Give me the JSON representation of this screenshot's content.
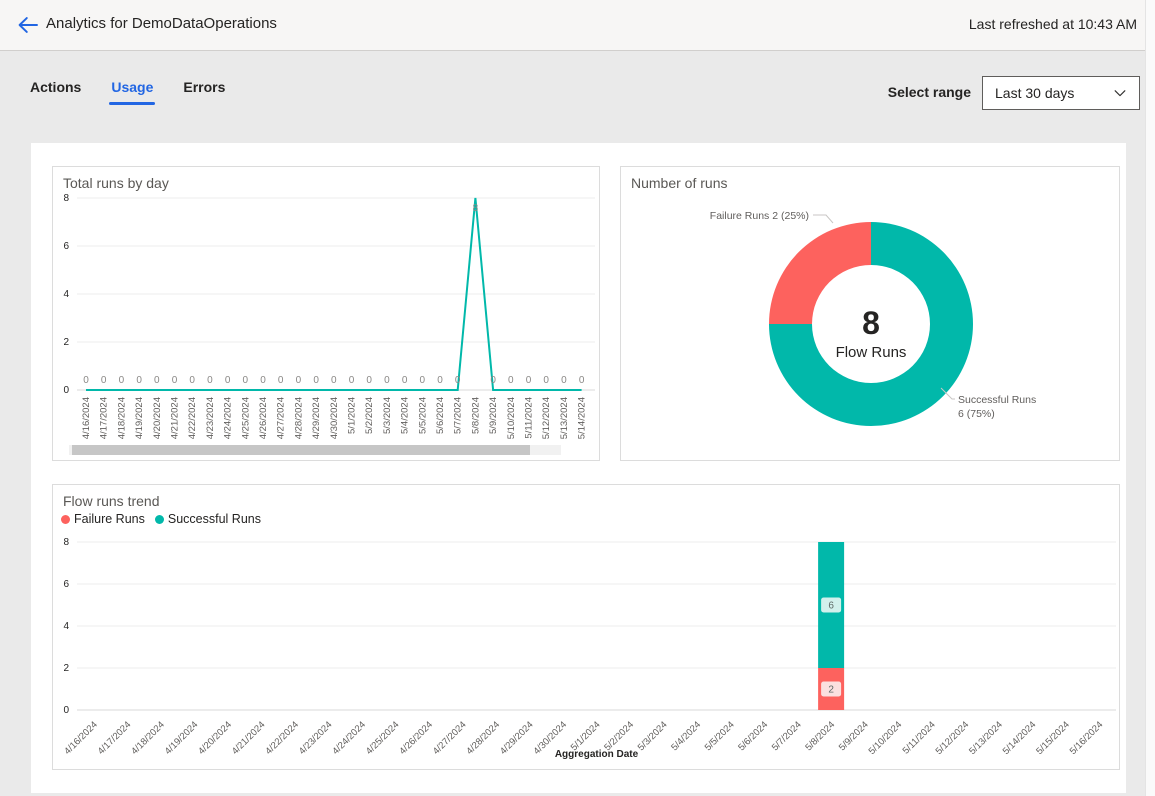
{
  "header": {
    "title": "Analytics for DemoDataOperations",
    "last_refreshed": "Last refreshed at 10:43 AM"
  },
  "tabs": [
    {
      "label": "Actions",
      "active": false
    },
    {
      "label": "Usage",
      "active": true
    },
    {
      "label": "Errors",
      "active": false
    }
  ],
  "range_selector": {
    "label": "Select range",
    "value": "Last 30 days",
    "chevron_icon": "chevron-down"
  },
  "colors": {
    "accent": "#2266E3",
    "teal": "#01B8AA",
    "red": "#FD625E",
    "teal_badge_bg": "#D2F0EC",
    "red_badge_bg": "#FBE0DF",
    "page_bg": "#EAEAEA",
    "header_bg": "#F7F6F5",
    "card_border": "#DCDCDC",
    "text_primary": "#252423",
    "text_secondary": "#605E5C",
    "gridline": "#EDEDED"
  },
  "chart_data": [
    {
      "id": "total_runs_by_day",
      "type": "line",
      "title": "Total runs by day",
      "line_color": "#01B8AA",
      "ylim": [
        0,
        8
      ],
      "yticks": [
        0,
        2,
        4,
        6,
        8
      ],
      "data_labels": true,
      "has_h_scrollbar": true,
      "categories": [
        "4/16/2024",
        "4/17/2024",
        "4/18/2024",
        "4/19/2024",
        "4/20/2024",
        "4/21/2024",
        "4/22/2024",
        "4/23/2024",
        "4/24/2024",
        "4/25/2024",
        "4/26/2024",
        "4/27/2024",
        "4/28/2024",
        "4/29/2024",
        "4/30/2024",
        "5/1/2024",
        "5/2/2024",
        "5/3/2024",
        "5/4/2024",
        "5/5/2024",
        "5/6/2024",
        "5/7/2024",
        "5/8/2024",
        "5/9/2024",
        "5/10/2024",
        "5/11/2024",
        "5/12/2024",
        "5/13/2024",
        "5/14/2024"
      ],
      "values": [
        0,
        0,
        0,
        0,
        0,
        0,
        0,
        0,
        0,
        0,
        0,
        0,
        0,
        0,
        0,
        0,
        0,
        0,
        0,
        0,
        0,
        0,
        8,
        0,
        0,
        0,
        0,
        0,
        0
      ]
    },
    {
      "id": "number_of_runs",
      "type": "donut",
      "title": "Number of runs",
      "center_value": "8",
      "center_label": "Flow Runs",
      "slices": [
        {
          "name": "Failure Runs",
          "value": 2,
          "pct": 25,
          "color": "#FD625E",
          "label": "Failure Runs 2 (25%)",
          "label_lines": [
            "Failure Runs 2 (25%)"
          ]
        },
        {
          "name": "Successful Runs",
          "value": 6,
          "pct": 75,
          "color": "#01B8AA",
          "label": "Successful Runs 6 (75%)",
          "label_lines": [
            "Successful Runs",
            "6 (75%)"
          ]
        }
      ]
    },
    {
      "id": "flow_runs_trend",
      "type": "bar",
      "title": "Flow runs trend",
      "stacked": true,
      "xlabel": "Aggregation Date",
      "ylim": [
        0,
        8
      ],
      "yticks": [
        0,
        2,
        4,
        6,
        8
      ],
      "legend_position": "top-left",
      "categories": [
        "4/16/2024",
        "4/17/2024",
        "4/18/2024",
        "4/19/2024",
        "4/20/2024",
        "4/21/2024",
        "4/22/2024",
        "4/23/2024",
        "4/24/2024",
        "4/25/2024",
        "4/26/2024",
        "4/27/2024",
        "4/28/2024",
        "4/29/2024",
        "4/30/2024",
        "5/1/2024",
        "5/2/2024",
        "5/3/2024",
        "5/4/2024",
        "5/5/2024",
        "5/6/2024",
        "5/7/2024",
        "5/8/2024",
        "5/9/2024",
        "5/10/2024",
        "5/11/2024",
        "5/12/2024",
        "5/13/2024",
        "5/14/2024",
        "5/15/2024",
        "5/16/2024"
      ],
      "series": [
        {
          "name": "Failure Runs",
          "color": "#FD625E",
          "badge_bg": "#FBE0DF",
          "values": [
            0,
            0,
            0,
            0,
            0,
            0,
            0,
            0,
            0,
            0,
            0,
            0,
            0,
            0,
            0,
            0,
            0,
            0,
            0,
            0,
            0,
            0,
            2,
            0,
            0,
            0,
            0,
            0,
            0,
            0,
            0
          ]
        },
        {
          "name": "Successful Runs",
          "color": "#01B8AA",
          "badge_bg": "#D2F0EC",
          "values": [
            0,
            0,
            0,
            0,
            0,
            0,
            0,
            0,
            0,
            0,
            0,
            0,
            0,
            0,
            0,
            0,
            0,
            0,
            0,
            0,
            0,
            0,
            6,
            0,
            0,
            0,
            0,
            0,
            0,
            0,
            0
          ]
        }
      ]
    }
  ]
}
